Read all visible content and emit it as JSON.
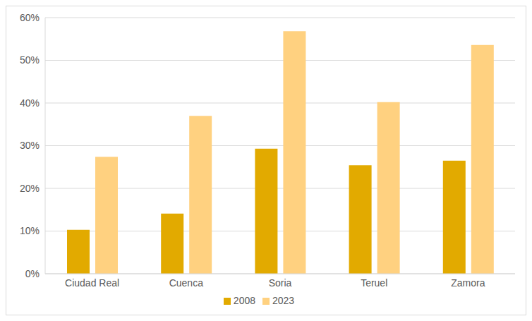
{
  "chart_data": {
    "type": "bar",
    "categories": [
      "Ciudad Real",
      "Cuenca",
      "Soria",
      "Teruel",
      "Zamora"
    ],
    "series": [
      {
        "name": "2008",
        "color": "#e2aa00",
        "values": [
          10.3,
          14.1,
          29.3,
          25.4,
          26.5
        ]
      },
      {
        "name": "2023",
        "color": "#ffd180",
        "values": [
          27.4,
          37.0,
          56.8,
          40.2,
          53.6
        ]
      }
    ],
    "ylim": [
      0,
      60
    ],
    "yticks": [
      {
        "value": 0,
        "label": "0%"
      },
      {
        "value": 10,
        "label": "10%"
      },
      {
        "value": 20,
        "label": "20%"
      },
      {
        "value": 30,
        "label": "30%"
      },
      {
        "value": 40,
        "label": "40%"
      },
      {
        "value": 50,
        "label": "50%"
      },
      {
        "value": 60,
        "label": "60%"
      }
    ],
    "grid": true,
    "legend": "bottom"
  }
}
